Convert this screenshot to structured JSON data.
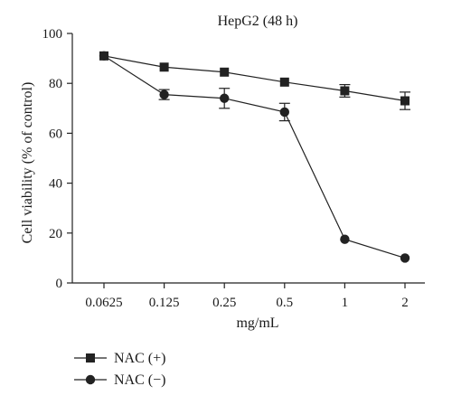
{
  "chart_data": {
    "type": "line",
    "title": "HepG2 (48 h)",
    "xlabel": "mg/mL",
    "ylabel": "Cell viability (% of control)",
    "categories": [
      "0.0625",
      "0.125",
      "0.25",
      "0.5",
      "1",
      "2"
    ],
    "ylim": [
      0,
      100
    ],
    "yticks": [
      0,
      20,
      40,
      60,
      80,
      100
    ],
    "grid": false,
    "legend_position": "bottom-left",
    "series": [
      {
        "name": "NAC (+)",
        "marker": "square",
        "values": [
          91,
          86.5,
          84.5,
          80.5,
          77,
          73
        ],
        "errors": [
          0,
          0,
          0,
          0,
          2.5,
          3.5
        ]
      },
      {
        "name": "NAC (−)",
        "marker": "circle",
        "values": [
          91,
          75.5,
          74,
          68.5,
          17.5,
          10
        ],
        "errors": [
          0,
          2,
          4,
          3.5,
          0,
          0
        ]
      }
    ]
  }
}
